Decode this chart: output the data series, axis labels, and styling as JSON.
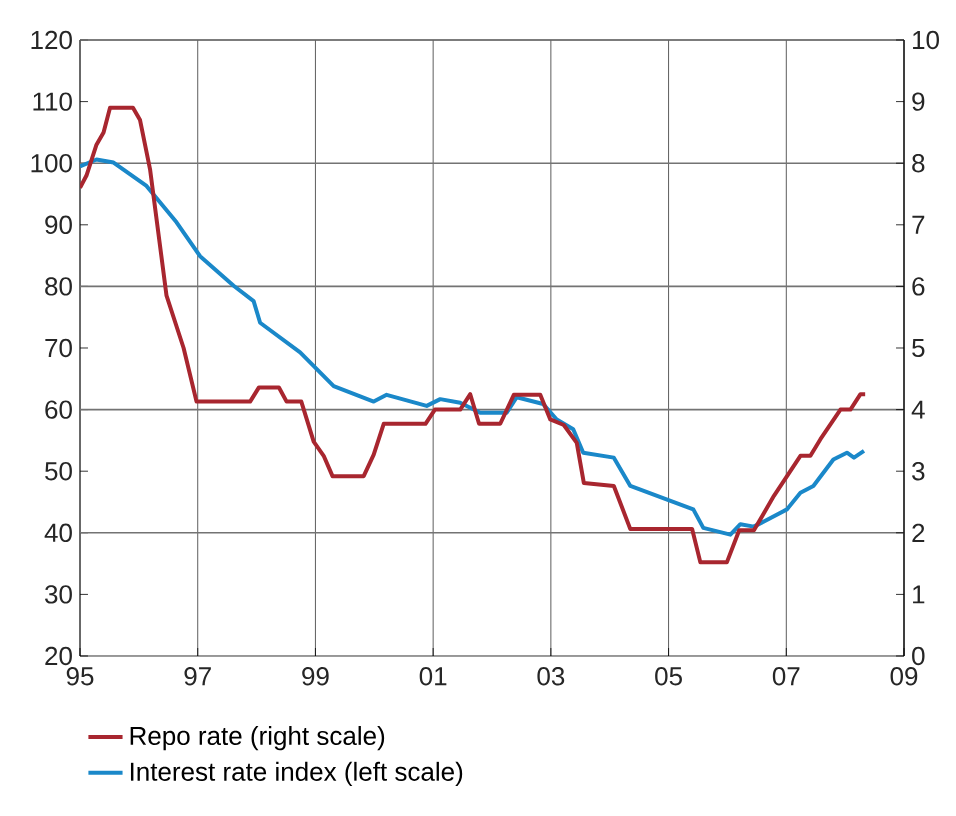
{
  "chart_data": {
    "type": "line",
    "legend": "bottom",
    "grid": true,
    "xlim": [
      1995,
      2009
    ],
    "xticks": [
      {
        "value": 1995,
        "label": "95"
      },
      {
        "value": 1997,
        "label": "97"
      },
      {
        "value": 1999,
        "label": "99"
      },
      {
        "value": 2001,
        "label": "01"
      },
      {
        "value": 2003,
        "label": "03"
      },
      {
        "value": 2005,
        "label": "05"
      },
      {
        "value": 2007,
        "label": "07"
      },
      {
        "value": 2009,
        "label": "09"
      }
    ],
    "ylim": [
      20,
      120
    ],
    "yticks": [
      20,
      30,
      40,
      50,
      60,
      70,
      80,
      90,
      100,
      110,
      120
    ],
    "y2lim": [
      0,
      10
    ],
    "y2ticks": [
      0,
      1,
      2,
      3,
      4,
      5,
      6,
      7,
      8,
      9,
      10
    ],
    "series": [
      {
        "name": "Repo rate (right scale)",
        "color": "#a8262f",
        "axis": "y2",
        "x": [
          1995.0,
          1995.11,
          1995.28,
          1995.4,
          1995.51,
          1995.9,
          1996.02,
          1996.19,
          1996.47,
          1996.76,
          1996.98,
          1997.89,
          1998.04,
          1998.38,
          1998.51,
          1998.76,
          1998.97,
          1999.14,
          1999.29,
          1999.82,
          1999.99,
          2000.16,
          2000.87,
          2001.03,
          2001.46,
          2001.63,
          2001.78,
          2002.14,
          2002.37,
          2002.82,
          2002.99,
          2003.22,
          2003.44,
          2003.56,
          2004.07,
          2004.35,
          2005.4,
          2005.54,
          2005.99,
          2006.2,
          2006.45,
          2006.79,
          2007.24,
          2007.41,
          2007.58,
          2007.92,
          2008.09,
          2008.26,
          2008.34
        ],
        "values": [
          7.6,
          7.8,
          8.3,
          8.5,
          8.9,
          8.9,
          8.7,
          7.9,
          5.85,
          5.0,
          4.13,
          4.13,
          4.36,
          4.36,
          4.13,
          4.13,
          3.48,
          3.25,
          2.92,
          2.92,
          3.27,
          3.77,
          3.77,
          4.0,
          4.0,
          4.25,
          3.77,
          3.77,
          4.24,
          4.24,
          3.84,
          3.75,
          3.46,
          2.81,
          2.76,
          2.06,
          2.06,
          1.52,
          1.52,
          2.04,
          2.04,
          2.6,
          3.25,
          3.25,
          3.52,
          4.0,
          4.0,
          4.25,
          4.25
        ]
      },
      {
        "name": "Interest rate index (left scale)",
        "color": "#1a88c9",
        "axis": "y",
        "x": [
          1995.0,
          1995.28,
          1995.57,
          1996.13,
          1996.64,
          1997.04,
          1997.61,
          1997.95,
          1998.06,
          1998.74,
          1999.31,
          1999.99,
          2000.21,
          2000.89,
          2001.12,
          2001.46,
          2001.8,
          2002.25,
          2002.42,
          2002.87,
          2003.1,
          2003.38,
          2003.55,
          2004.07,
          2004.35,
          2005.42,
          2005.59,
          2006.05,
          2006.22,
          2006.45,
          2007.01,
          2007.24,
          2007.46,
          2007.8,
          2008.03,
          2008.15,
          2008.32
        ],
        "values": [
          99.5,
          100.6,
          100.1,
          96.3,
          90.4,
          84.9,
          80.1,
          77.6,
          74.1,
          69.3,
          63.8,
          61.3,
          62.4,
          60.6,
          61.7,
          61.1,
          59.5,
          59.5,
          62.0,
          60.9,
          58.4,
          56.8,
          53.0,
          52.2,
          47.6,
          43.8,
          40.8,
          39.7,
          41.4,
          41.0,
          43.8,
          46.5,
          47.6,
          51.9,
          53.0,
          52.2,
          53.3
        ]
      }
    ]
  }
}
